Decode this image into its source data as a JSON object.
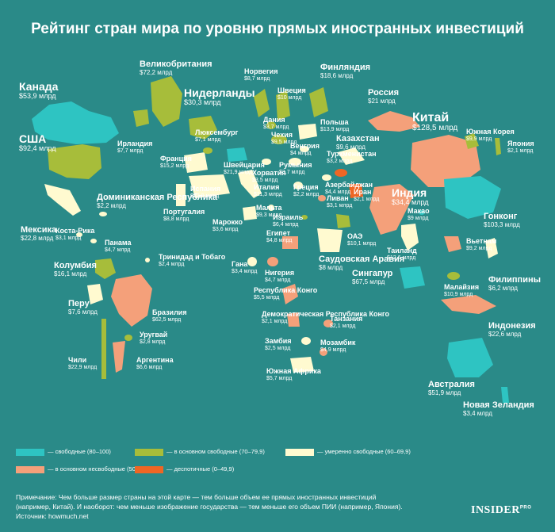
{
  "title": "Рейтинг стран мира по уровню прямых иностранных инвестиций",
  "colors": {
    "background": "#2a8a88",
    "free": "#2ec4c2",
    "mostly_free": "#a7bd3a",
    "moderately_free": "#fffad0",
    "mostly_unfree": "#f4a07a",
    "repressed": "#ee6624"
  },
  "countries": [
    {
      "name": "Канада",
      "value": "$53,9 млрд",
      "status": "free"
    },
    {
      "name": "США",
      "value": "$92,4 млрд",
      "status": "mostly_free"
    },
    {
      "name": "Мексика",
      "value": "$22,8 млрд",
      "status": "moderately_free"
    },
    {
      "name": "Коста-Рика",
      "value": "$3,1 млрд",
      "status": "moderately_free"
    },
    {
      "name": "Панама",
      "value": "$4,7 млрд",
      "status": "moderately_free"
    },
    {
      "name": "Доминиканская Республика",
      "value": "$2,2 млрд",
      "status": "moderately_free"
    },
    {
      "name": "Тринидад и Тобаго",
      "value": "$2,4 млрд",
      "status": "moderately_free"
    },
    {
      "name": "Колумбия",
      "value": "$16,1 млрд",
      "status": "mostly_free"
    },
    {
      "name": "Перу",
      "value": "$7,6 млрд",
      "status": "moderately_free"
    },
    {
      "name": "Бразилия",
      "value": "$62,5 млрд",
      "status": "mostly_unfree"
    },
    {
      "name": "Уругвай",
      "value": "$2,8 млрд",
      "status": "mostly_free"
    },
    {
      "name": "Чили",
      "value": "$22,9 млрд",
      "status": "mostly_free"
    },
    {
      "name": "Аргентина",
      "value": "$6,6 млрд",
      "status": "mostly_unfree"
    },
    {
      "name": "Великобритания",
      "value": "$72,2 млрд",
      "status": "mostly_free"
    },
    {
      "name": "Ирландия",
      "value": "$7,7 млрд",
      "status": "mostly_free"
    },
    {
      "name": "Франция",
      "value": "$15,2 млрд",
      "status": "moderately_free"
    },
    {
      "name": "Испания",
      "value": "$22,9 млрд",
      "status": "moderately_free"
    },
    {
      "name": "Португалия",
      "value": "$8,8 млрд",
      "status": "moderately_free"
    },
    {
      "name": "Нидерланды",
      "value": "$30,3 млрд",
      "status": "mostly_free"
    },
    {
      "name": "Люксембург",
      "value": "$7,1 млрд",
      "status": "mostly_free"
    },
    {
      "name": "Швейцария",
      "value": "$21,9 млрд",
      "status": "free"
    },
    {
      "name": "Италия",
      "value": "$11,3 млрд",
      "status": "moderately_free"
    },
    {
      "name": "Мальта",
      "value": "$9,3 млрд",
      "status": "moderately_free"
    },
    {
      "name": "Хорватия",
      "value": "$3,5 млрд",
      "status": "moderately_free"
    },
    {
      "name": "Норвегия",
      "value": "$8,7 млрд",
      "status": "mostly_free"
    },
    {
      "name": "Швеция",
      "value": "$10 млрд",
      "status": "mostly_free"
    },
    {
      "name": "Финляндия",
      "value": "$18,6 млрд",
      "status": "mostly_free"
    },
    {
      "name": "Дания",
      "value": "$3,7 млрд",
      "status": "mostly_free"
    },
    {
      "name": "Чехия",
      "value": "$9,5 млрд",
      "status": "mostly_free"
    },
    {
      "name": "Польша",
      "value": "$13,9 млрд",
      "status": "moderately_free"
    },
    {
      "name": "Венгрия",
      "value": "$4 млрд",
      "status": "moderately_free"
    },
    {
      "name": "Румыния",
      "value": "$3,7 млрд",
      "status": "moderately_free"
    },
    {
      "name": "Греция",
      "value": "$2,2 млрд",
      "status": "moderately_free"
    },
    {
      "name": "Россия",
      "value": "$21 млрд",
      "status": "mostly_unfree"
    },
    {
      "name": "Казахстан",
      "value": "$9,6 млрд",
      "status": "moderately_free"
    },
    {
      "name": "Туркменистан",
      "value": "$3,2 млрд",
      "status": "repressed"
    },
    {
      "name": "Азербайджан",
      "value": "$4,4 млрд",
      "status": "moderately_free"
    },
    {
      "name": "Иран",
      "value": "$2,1 млрд",
      "status": "repressed"
    },
    {
      "name": "Ливан",
      "value": "$3,1 млрд",
      "status": "mostly_unfree"
    },
    {
      "name": "Израиль",
      "value": "$6,4 млрд",
      "status": "mostly_free"
    },
    {
      "name": "Египет",
      "value": "$4,8 млрд",
      "status": "mostly_unfree"
    },
    {
      "name": "Марокко",
      "value": "$3,6 млрд",
      "status": "moderately_free"
    },
    {
      "name": "ОАЭ",
      "value": "$10,1 млрд",
      "status": "mostly_free"
    },
    {
      "name": "Саудовская Аравия",
      "value": "$8 млрд",
      "status": "moderately_free"
    },
    {
      "name": "Китай",
      "value": "$128,5 млрд",
      "status": "mostly_unfree"
    },
    {
      "name": "Индия",
      "value": "$34,4 млрд",
      "status": "mostly_unfree"
    },
    {
      "name": "Макао",
      "value": "$9 млрд",
      "status": "free"
    },
    {
      "name": "Гонконг",
      "value": "$103,3 млрд",
      "status": "free"
    },
    {
      "name": "Южная Корея",
      "value": "$9,9 млрд",
      "status": "mostly_free"
    },
    {
      "name": "Япония",
      "value": "$2,1 млрд",
      "status": "mostly_free"
    },
    {
      "name": "Таиланд",
      "value": "$12,6 млрд",
      "status": "moderately_free"
    },
    {
      "name": "Вьетнам",
      "value": "$9,2 млрд",
      "status": "mostly_unfree"
    },
    {
      "name": "Филиппины",
      "value": "$6,2 млрд",
      "status": "moderately_free"
    },
    {
      "name": "Малайзия",
      "value": "$10,9 млрд",
      "status": "mostly_free"
    },
    {
      "name": "Сингапур",
      "value": "$67,5 млрд",
      "status": "free"
    },
    {
      "name": "Индонезия",
      "value": "$22,6 млрд",
      "status": "mostly_unfree"
    },
    {
      "name": "Австралия",
      "value": "$51,9 млрд",
      "status": "free"
    },
    {
      "name": "Новая Зеландия",
      "value": "$3,4 млрд",
      "status": "free"
    },
    {
      "name": "Гана",
      "value": "$3,4 млрд",
      "status": "moderately_free"
    },
    {
      "name": "Нигерия",
      "value": "$4,7 млрд",
      "status": "mostly_unfree"
    },
    {
      "name": "Республика Конго",
      "value": "$5,5 млрд",
      "status": "mostly_unfree"
    },
    {
      "name": "Демократическая Республика Конго",
      "value": "$2,1 млрд",
      "status": "mostly_unfree"
    },
    {
      "name": "Танзания",
      "value": "$2,1 млрд",
      "status": "mostly_unfree"
    },
    {
      "name": "Замбия",
      "value": "$2,5 млрд",
      "status": "moderately_free"
    },
    {
      "name": "Мозамбик",
      "value": "$4,9 млрд",
      "status": "mostly_unfree"
    },
    {
      "name": "Южная Африка",
      "value": "$5,7 млрд",
      "status": "moderately_free"
    }
  ],
  "legend": [
    {
      "label": "— свободные (80–100)",
      "status": "free"
    },
    {
      "label": "— в основном свободные (70–79,9)",
      "status": "mostly_free"
    },
    {
      "label": "— умеренно свободные (60–69,9)",
      "status": "moderately_free"
    },
    {
      "label": "— в основном несвободные (50–59,9)",
      "status": "mostly_unfree"
    },
    {
      "label": "— деспотичные (0–49,9)",
      "status": "repressed"
    }
  ],
  "note": {
    "line1": "Примечание: Чем больше размер страны на этой карте — тем больше объем ее прямых иностранных инвестиций",
    "line2": "(например, Китай). И наоборот: чем меньше изображение государства — тем меньше его объем ПИИ (например, Япония).",
    "line3": "Источник: howmuch.net"
  },
  "brand": {
    "name": "INSIDER",
    "suffix": "PRO"
  }
}
